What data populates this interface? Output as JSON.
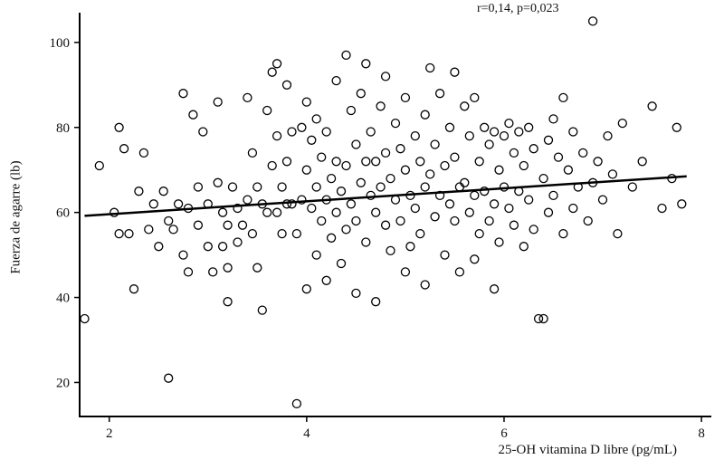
{
  "chart_data": {
    "type": "scatter",
    "annotation": "r=0,14, p=0,023",
    "xlabel": "25-OH vitamina D libre (pg/mL)",
    "ylabel": "Fuerza de agarre (lb)",
    "xlim": [
      1.7,
      8.1
    ],
    "ylim": [
      12,
      107
    ],
    "xticks": [
      2,
      4,
      6,
      8
    ],
    "yticks": [
      20,
      40,
      60,
      80,
      100
    ],
    "grid": false,
    "legend": null,
    "marker": "open-circle",
    "marker_color": "#000000",
    "line_color": "#000000",
    "regression_line": {
      "x1": 1.75,
      "y1": 59.2,
      "x2": 7.85,
      "y2": 68.5
    },
    "points": [
      [
        1.75,
        35
      ],
      [
        1.9,
        71
      ],
      [
        2.05,
        60
      ],
      [
        2.1,
        80
      ],
      [
        2.15,
        75
      ],
      [
        2.2,
        55
      ],
      [
        2.25,
        42
      ],
      [
        2.3,
        65
      ],
      [
        2.1,
        55
      ],
      [
        2.35,
        74
      ],
      [
        2.4,
        56
      ],
      [
        2.45,
        62
      ],
      [
        2.5,
        52
      ],
      [
        2.55,
        65
      ],
      [
        2.6,
        21
      ],
      [
        2.6,
        58
      ],
      [
        2.65,
        56
      ],
      [
        2.7,
        62
      ],
      [
        2.75,
        88
      ],
      [
        2.75,
        50
      ],
      [
        2.8,
        61
      ],
      [
        2.8,
        46
      ],
      [
        2.85,
        83
      ],
      [
        2.9,
        66
      ],
      [
        2.9,
        57
      ],
      [
        2.95,
        79
      ],
      [
        3.0,
        62
      ],
      [
        3.0,
        52
      ],
      [
        3.05,
        46
      ],
      [
        3.1,
        86
      ],
      [
        3.1,
        67
      ],
      [
        3.15,
        60
      ],
      [
        3.15,
        52
      ],
      [
        3.2,
        57
      ],
      [
        3.2,
        47
      ],
      [
        3.2,
        39
      ],
      [
        3.25,
        66
      ],
      [
        3.3,
        61
      ],
      [
        3.3,
        53
      ],
      [
        3.35,
        57
      ],
      [
        3.4,
        87
      ],
      [
        3.4,
        63
      ],
      [
        3.45,
        74
      ],
      [
        3.45,
        55
      ],
      [
        3.5,
        66
      ],
      [
        3.5,
        47
      ],
      [
        3.55,
        62
      ],
      [
        3.55,
        37
      ],
      [
        3.6,
        84
      ],
      [
        3.6,
        60
      ],
      [
        3.65,
        93
      ],
      [
        3.65,
        71
      ],
      [
        3.7,
        95
      ],
      [
        3.7,
        78
      ],
      [
        3.7,
        60
      ],
      [
        3.75,
        66
      ],
      [
        3.75,
        55
      ],
      [
        3.8,
        90
      ],
      [
        3.8,
        72
      ],
      [
        3.8,
        62
      ],
      [
        3.85,
        79
      ],
      [
        3.85,
        62
      ],
      [
        3.9,
        15
      ],
      [
        3.9,
        55
      ],
      [
        3.95,
        80
      ],
      [
        3.95,
        63
      ],
      [
        4.0,
        86
      ],
      [
        4.0,
        70
      ],
      [
        4.0,
        42
      ],
      [
        4.05,
        77
      ],
      [
        4.05,
        61
      ],
      [
        4.1,
        82
      ],
      [
        4.1,
        66
      ],
      [
        4.1,
        50
      ],
      [
        4.15,
        73
      ],
      [
        4.15,
        58
      ],
      [
        4.2,
        79
      ],
      [
        4.2,
        63
      ],
      [
        4.2,
        44
      ],
      [
        4.25,
        68
      ],
      [
        4.25,
        54
      ],
      [
        4.3,
        91
      ],
      [
        4.3,
        72
      ],
      [
        4.3,
        60
      ],
      [
        4.35,
        65
      ],
      [
        4.35,
        48
      ],
      [
        4.4,
        97
      ],
      [
        4.4,
        71
      ],
      [
        4.4,
        56
      ],
      [
        4.45,
        84
      ],
      [
        4.45,
        62
      ],
      [
        4.5,
        76
      ],
      [
        4.5,
        58
      ],
      [
        4.5,
        41
      ],
      [
        4.55,
        88
      ],
      [
        4.55,
        67
      ],
      [
        4.6,
        95
      ],
      [
        4.6,
        72
      ],
      [
        4.6,
        53
      ],
      [
        4.65,
        79
      ],
      [
        4.65,
        64
      ],
      [
        4.7,
        72
      ],
      [
        4.7,
        60
      ],
      [
        4.7,
        39
      ],
      [
        4.75,
        85
      ],
      [
        4.75,
        66
      ],
      [
        4.8,
        92
      ],
      [
        4.8,
        74
      ],
      [
        4.8,
        57
      ],
      [
        4.85,
        68
      ],
      [
        4.85,
        51
      ],
      [
        4.9,
        81
      ],
      [
        4.9,
        63
      ],
      [
        4.95,
        75
      ],
      [
        4.95,
        58
      ],
      [
        5.0,
        87
      ],
      [
        5.0,
        70
      ],
      [
        5.0,
        46
      ],
      [
        5.05,
        64
      ],
      [
        5.05,
        52
      ],
      [
        5.1,
        78
      ],
      [
        5.1,
        61
      ],
      [
        5.15,
        72
      ],
      [
        5.15,
        55
      ],
      [
        5.2,
        83
      ],
      [
        5.2,
        66
      ],
      [
        5.2,
        43
      ],
      [
        5.25,
        94
      ],
      [
        5.25,
        69
      ],
      [
        5.3,
        76
      ],
      [
        5.3,
        59
      ],
      [
        5.35,
        88
      ],
      [
        5.35,
        64
      ],
      [
        5.4,
        71
      ],
      [
        5.4,
        50
      ],
      [
        5.45,
        80
      ],
      [
        5.45,
        62
      ],
      [
        5.5,
        93
      ],
      [
        5.5,
        73
      ],
      [
        5.5,
        58
      ],
      [
        5.55,
        66
      ],
      [
        5.55,
        46
      ],
      [
        5.6,
        85
      ],
      [
        5.6,
        67
      ],
      [
        5.65,
        78
      ],
      [
        5.65,
        60
      ],
      [
        5.7,
        87
      ],
      [
        5.7,
        64
      ],
      [
        5.7,
        49
      ],
      [
        5.75,
        72
      ],
      [
        5.75,
        55
      ],
      [
        5.8,
        80
      ],
      [
        5.8,
        65
      ],
      [
        5.85,
        76
      ],
      [
        5.85,
        58
      ],
      [
        5.9,
        79
      ],
      [
        5.9,
        62
      ],
      [
        5.9,
        42
      ],
      [
        5.95,
        70
      ],
      [
        5.95,
        53
      ],
      [
        6.0,
        78
      ],
      [
        6.0,
        66
      ],
      [
        6.05,
        81
      ],
      [
        6.05,
        61
      ],
      [
        6.1,
        74
      ],
      [
        6.1,
        57
      ],
      [
        6.15,
        79
      ],
      [
        6.15,
        65
      ],
      [
        6.2,
        71
      ],
      [
        6.2,
        52
      ],
      [
        6.25,
        80
      ],
      [
        6.25,
        63
      ],
      [
        6.3,
        75
      ],
      [
        6.3,
        56
      ],
      [
        6.35,
        35
      ],
      [
        6.4,
        68
      ],
      [
        6.4,
        35
      ],
      [
        6.45,
        77
      ],
      [
        6.45,
        60
      ],
      [
        6.5,
        82
      ],
      [
        6.5,
        64
      ],
      [
        6.55,
        73
      ],
      [
        6.6,
        87
      ],
      [
        6.6,
        55
      ],
      [
        6.65,
        70
      ],
      [
        6.7,
        79
      ],
      [
        6.7,
        61
      ],
      [
        6.75,
        66
      ],
      [
        6.8,
        74
      ],
      [
        6.85,
        58
      ],
      [
        6.9,
        105
      ],
      [
        6.9,
        67
      ],
      [
        6.95,
        72
      ],
      [
        7.0,
        63
      ],
      [
        7.05,
        78
      ],
      [
        7.1,
        69
      ],
      [
        7.15,
        55
      ],
      [
        7.2,
        81
      ],
      [
        7.3,
        66
      ],
      [
        7.4,
        72
      ],
      [
        7.5,
        85
      ],
      [
        7.6,
        61
      ],
      [
        7.7,
        68
      ],
      [
        7.75,
        80
      ],
      [
        7.8,
        62
      ]
    ]
  }
}
